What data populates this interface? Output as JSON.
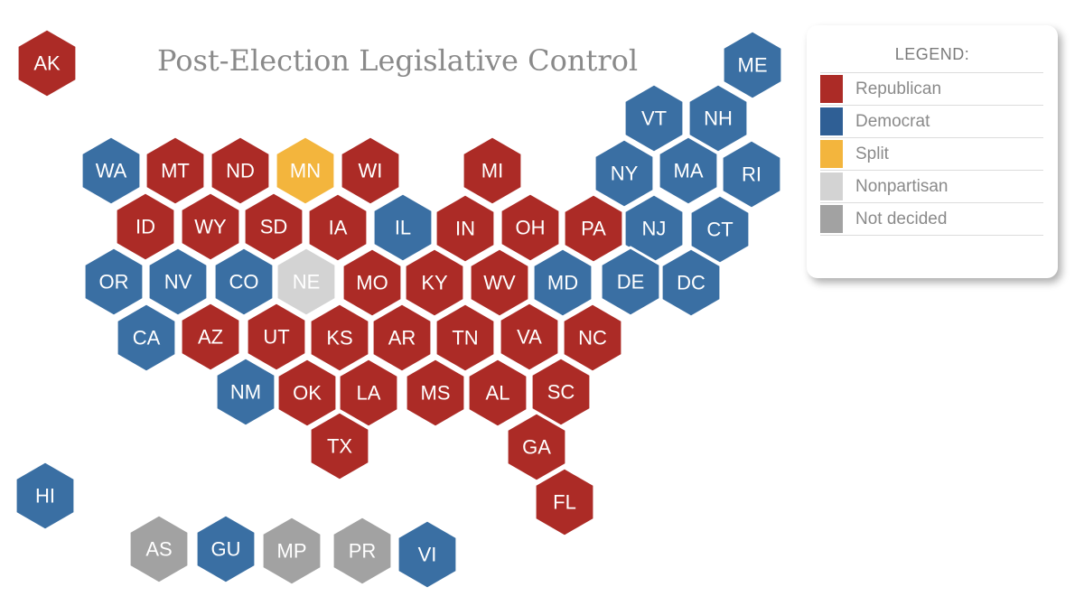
{
  "title": "Post-Election Legislative Control",
  "legend": {
    "title": "LEGEND:",
    "items": [
      {
        "key": "R",
        "label": "Republican",
        "color": "#ac2b26"
      },
      {
        "key": "D",
        "label": "Democrat",
        "color": "#2f5f95"
      },
      {
        "key": "S",
        "label": "Split",
        "color": "#f3b53d"
      },
      {
        "key": "N",
        "label": "Nonpartisan",
        "color": "#d3d3d3"
      },
      {
        "key": "U",
        "label": "Not decided",
        "color": "#a2a2a2"
      }
    ]
  },
  "map_colors": {
    "R": "#ac2b26",
    "D": "#3a6fa3",
    "S": "#f3b53d",
    "N": "#d3d3d3",
    "U": "#a2a2a2"
  },
  "states": [
    {
      "abbr": "AK",
      "status": "R"
    },
    {
      "abbr": "ME",
      "status": "D"
    },
    {
      "abbr": "VT",
      "status": "D"
    },
    {
      "abbr": "NH",
      "status": "D"
    },
    {
      "abbr": "WA",
      "status": "D"
    },
    {
      "abbr": "MT",
      "status": "R"
    },
    {
      "abbr": "ND",
      "status": "R"
    },
    {
      "abbr": "MN",
      "status": "S"
    },
    {
      "abbr": "WI",
      "status": "R"
    },
    {
      "abbr": "MI",
      "status": "R"
    },
    {
      "abbr": "NY",
      "status": "D"
    },
    {
      "abbr": "MA",
      "status": "D"
    },
    {
      "abbr": "RI",
      "status": "D"
    },
    {
      "abbr": "ID",
      "status": "R"
    },
    {
      "abbr": "WY",
      "status": "R"
    },
    {
      "abbr": "SD",
      "status": "R"
    },
    {
      "abbr": "IA",
      "status": "R"
    },
    {
      "abbr": "IL",
      "status": "D"
    },
    {
      "abbr": "IN",
      "status": "R"
    },
    {
      "abbr": "OH",
      "status": "R"
    },
    {
      "abbr": "PA",
      "status": "R"
    },
    {
      "abbr": "NJ",
      "status": "D"
    },
    {
      "abbr": "CT",
      "status": "D"
    },
    {
      "abbr": "OR",
      "status": "D"
    },
    {
      "abbr": "NV",
      "status": "D"
    },
    {
      "abbr": "CO",
      "status": "D"
    },
    {
      "abbr": "NE",
      "status": "N"
    },
    {
      "abbr": "MO",
      "status": "R"
    },
    {
      "abbr": "KY",
      "status": "R"
    },
    {
      "abbr": "WV",
      "status": "R"
    },
    {
      "abbr": "MD",
      "status": "D"
    },
    {
      "abbr": "DE",
      "status": "D"
    },
    {
      "abbr": "DC",
      "status": "D"
    },
    {
      "abbr": "CA",
      "status": "D"
    },
    {
      "abbr": "AZ",
      "status": "R"
    },
    {
      "abbr": "UT",
      "status": "R"
    },
    {
      "abbr": "KS",
      "status": "R"
    },
    {
      "abbr": "AR",
      "status": "R"
    },
    {
      "abbr": "TN",
      "status": "R"
    },
    {
      "abbr": "VA",
      "status": "R"
    },
    {
      "abbr": "NC",
      "status": "R"
    },
    {
      "abbr": "NM",
      "status": "D"
    },
    {
      "abbr": "OK",
      "status": "R"
    },
    {
      "abbr": "LA",
      "status": "R"
    },
    {
      "abbr": "MS",
      "status": "R"
    },
    {
      "abbr": "AL",
      "status": "R"
    },
    {
      "abbr": "SC",
      "status": "R"
    },
    {
      "abbr": "TX",
      "status": "R"
    },
    {
      "abbr": "GA",
      "status": "R"
    },
    {
      "abbr": "FL",
      "status": "R"
    },
    {
      "abbr": "HI",
      "status": "D"
    },
    {
      "abbr": "AS",
      "status": "U"
    },
    {
      "abbr": "GU",
      "status": "D"
    },
    {
      "abbr": "MP",
      "status": "U"
    },
    {
      "abbr": "PR",
      "status": "U"
    },
    {
      "abbr": "VI",
      "status": "D"
    }
  ]
}
